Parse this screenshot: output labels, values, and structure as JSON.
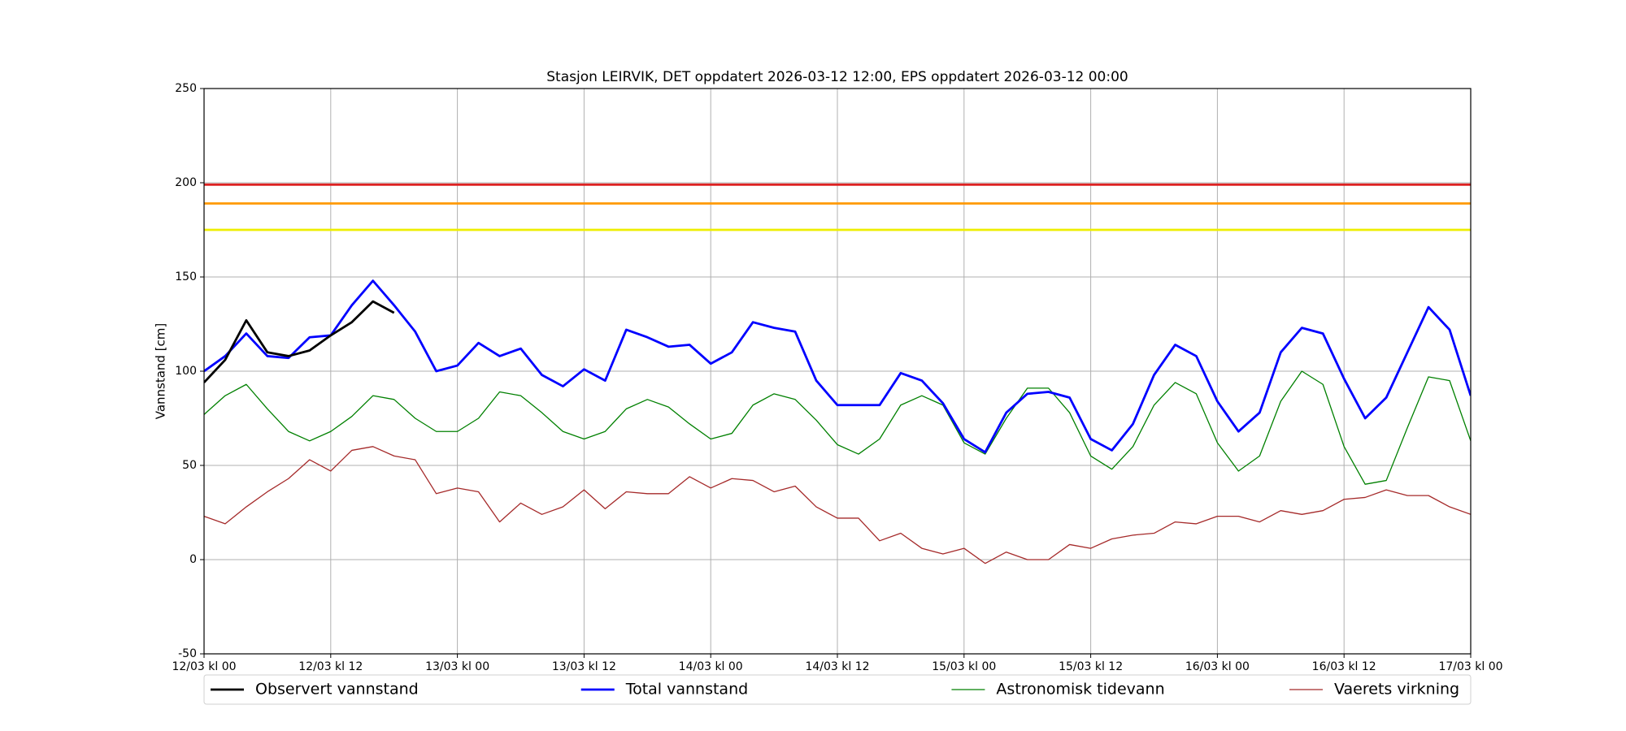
{
  "chart_data": {
    "type": "line",
    "title": "Stasjon LEIRVIK, DET oppdatert 2026-03-12 12:00, EPS oppdatert 2026-03-12 00:00",
    "ylabel": "Vannstand [cm]",
    "x": [
      0,
      2,
      4,
      6,
      8,
      10,
      12,
      14,
      16,
      18,
      20,
      22,
      24,
      26,
      28,
      30,
      32,
      34,
      36,
      38,
      40,
      42,
      44,
      46,
      48,
      50,
      52,
      54,
      56,
      58,
      60,
      62,
      64,
      66,
      68,
      70,
      72,
      74,
      76,
      78,
      80,
      82,
      84,
      86,
      88,
      90,
      92,
      94,
      96,
      98,
      100,
      102,
      104,
      106,
      108,
      110,
      112,
      114,
      116,
      118,
      120
    ],
    "series": [
      {
        "name": "Observert vannstand",
        "color": "#000000",
        "width": 2.8,
        "values": [
          94,
          106,
          127,
          110,
          108,
          111,
          119,
          126,
          137,
          131,
          null,
          null,
          null,
          null,
          null,
          null,
          null,
          null,
          null,
          null,
          null,
          null,
          null,
          null,
          null,
          null,
          null,
          null,
          null,
          null,
          null,
          null,
          null,
          null,
          null,
          null,
          null,
          null,
          null,
          null,
          null,
          null,
          null,
          null,
          null,
          null,
          null,
          null,
          null,
          null,
          null,
          null,
          null,
          null,
          null,
          null,
          null,
          null,
          null,
          null,
          null
        ]
      },
      {
        "name": "Total vannstand",
        "color": "#0000ff",
        "width": 2.8,
        "values": [
          100,
          108,
          120,
          108,
          107,
          118,
          119,
          135,
          148,
          135,
          121,
          100,
          103,
          115,
          108,
          112,
          98,
          92,
          101,
          95,
          122,
          118,
          113,
          114,
          104,
          110,
          126,
          123,
          121,
          95,
          82,
          82,
          82,
          99,
          95,
          83,
          64,
          57,
          78,
          88,
          89,
          86,
          64,
          58,
          72,
          98,
          114,
          108,
          84,
          68,
          78,
          110,
          123,
          120,
          96,
          75,
          86,
          110,
          134,
          122,
          87
        ]
      },
      {
        "name": "Astronomisk tidevann",
        "color": "#008000",
        "width": 1.3,
        "values": [
          77,
          87,
          93,
          80,
          68,
          63,
          68,
          76,
          87,
          85,
          75,
          68,
          68,
          75,
          89,
          87,
          78,
          68,
          64,
          68,
          80,
          85,
          81,
          72,
          64,
          67,
          82,
          88,
          85,
          74,
          61,
          56,
          64,
          82,
          87,
          82,
          62,
          56,
          75,
          91,
          91,
          78,
          55,
          48,
          60,
          82,
          94,
          88,
          62,
          47,
          55,
          84,
          100,
          93,
          60,
          40,
          42,
          70,
          97,
          95,
          63
        ]
      },
      {
        "name": "Vaerets virkning",
        "color": "#a52a2a",
        "width": 1.3,
        "values": [
          23,
          19,
          28,
          36,
          43,
          53,
          47,
          58,
          60,
          55,
          53,
          35,
          38,
          36,
          20,
          30,
          24,
          28,
          37,
          27,
          36,
          35,
          35,
          44,
          38,
          43,
          42,
          36,
          39,
          28,
          22,
          22,
          10,
          14,
          6,
          3,
          6,
          -2,
          4,
          0,
          0,
          8,
          6,
          11,
          13,
          14,
          20,
          19,
          23,
          23,
          20,
          26,
          24,
          26,
          32,
          33,
          37,
          34,
          34,
          28,
          24
        ]
      }
    ],
    "reference_lines": [
      {
        "value": 199,
        "color": "#dd2222"
      },
      {
        "value": 189,
        "color": "#ff9900"
      },
      {
        "value": 175,
        "color": "#eeee00"
      }
    ],
    "xlim": [
      0,
      120
    ],
    "xticks": [
      {
        "value": 0,
        "label": "12/03 kl 00"
      },
      {
        "value": 12,
        "label": "12/03 kl 12"
      },
      {
        "value": 24,
        "label": "13/03 kl 00"
      },
      {
        "value": 36,
        "label": "13/03 kl 12"
      },
      {
        "value": 48,
        "label": "14/03 kl 00"
      },
      {
        "value": 60,
        "label": "14/03 kl 12"
      },
      {
        "value": 72,
        "label": "15/03 kl 00"
      },
      {
        "value": 84,
        "label": "15/03 kl 12"
      },
      {
        "value": 96,
        "label": "16/03 kl 00"
      },
      {
        "value": 108,
        "label": "16/03 kl 12"
      },
      {
        "value": 120,
        "label": "17/03 kl 00"
      }
    ],
    "ylim": [
      -50,
      250
    ],
    "yticks": [
      -50,
      0,
      50,
      100,
      150,
      200,
      250
    ],
    "grid": true,
    "legend": "below"
  }
}
